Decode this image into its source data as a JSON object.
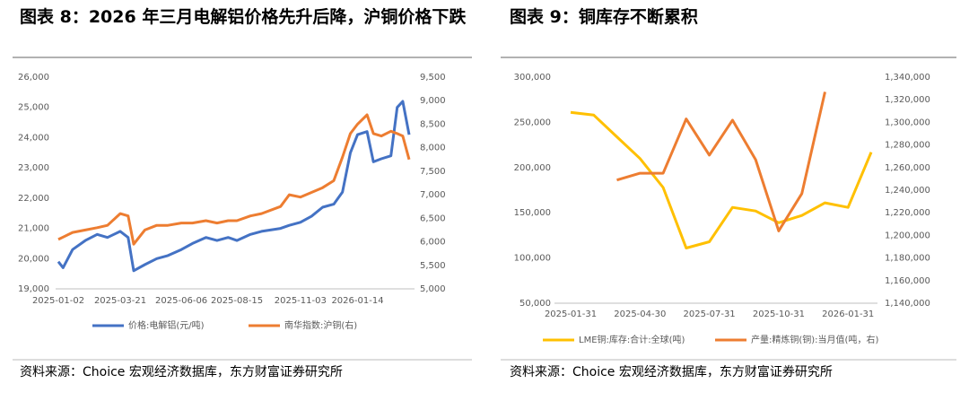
{
  "chart_data": [
    {
      "type": "line",
      "title": "图表 8：2026 年三月电解铝价格先升后降，沪铜价格下跌",
      "source": "资料来源：Choice 宏观经济数据库，东方财富证券研究所",
      "x": [
        "2025-01-02",
        "2025-01-08",
        "2025-01-20",
        "2025-02-05",
        "2025-02-20",
        "2025-03-05",
        "2025-03-21",
        "2025-03-31",
        "2025-04-07",
        "2025-04-21",
        "2025-05-06",
        "2025-05-20",
        "2025-06-06",
        "2025-06-20",
        "2025-07-07",
        "2025-07-21",
        "2025-08-04",
        "2025-08-15",
        "2025-09-01",
        "2025-09-15",
        "2025-10-09",
        "2025-10-20",
        "2025-11-03",
        "2025-11-17",
        "2025-12-01",
        "2025-12-15",
        "2025-12-26",
        "2026-01-05",
        "2026-01-14",
        "2026-01-26",
        "2026-02-03",
        "2026-02-13",
        "2026-02-25",
        "2026-03-05",
        "2026-03-12",
        "2026-03-20"
      ],
      "xticks": [
        "2025-01-02",
        "2025-03-21",
        "2025-06-06",
        "2025-08-15",
        "2025-11-03",
        "2026-01-14"
      ],
      "series": [
        {
          "name": "价格:电解铝(元/吨)",
          "color": "#4472c4",
          "axis": "y",
          "values": [
            19900,
            19700,
            20300,
            20600,
            20800,
            20700,
            20900,
            20700,
            19600,
            19800,
            20000,
            20100,
            20300,
            20500,
            20700,
            20600,
            20700,
            20600,
            20800,
            20900,
            21000,
            21100,
            21200,
            21400,
            21700,
            21800,
            22200,
            23500,
            24100,
            24200,
            23200,
            23300,
            23400,
            25000,
            25200,
            24100
          ]
        },
        {
          "name": "南华指数:沪铜(右)",
          "color": "#ed7d31",
          "axis": "y2",
          "values": [
            6050,
            6100,
            6200,
            6250,
            6300,
            6350,
            6600,
            6550,
            5950,
            6250,
            6350,
            6350,
            6400,
            6400,
            6450,
            6400,
            6450,
            6450,
            6550,
            6600,
            6750,
            7000,
            6950,
            7050,
            7150,
            7300,
            7800,
            8300,
            8500,
            8700,
            8300,
            8250,
            8350,
            8300,
            8250,
            7750
          ]
        }
      ],
      "ylim": [
        19000,
        26000
      ],
      "yticks": [
        {
          "value": 19000,
          "label": "19,000"
        },
        {
          "value": 20000,
          "label": "20,000"
        },
        {
          "value": 21000,
          "label": "21,000"
        },
        {
          "value": 22000,
          "label": "22,000"
        },
        {
          "value": 23000,
          "label": "23,000"
        },
        {
          "value": 24000,
          "label": "24,000"
        },
        {
          "value": 25000,
          "label": "25,000"
        },
        {
          "value": 26000,
          "label": "26,000"
        }
      ],
      "y2lim": [
        5000,
        9500
      ],
      "y2ticks": [
        {
          "value": 5000,
          "label": "5,000"
        },
        {
          "value": 5500,
          "label": "5,500"
        },
        {
          "value": 6000,
          "label": "6,000"
        },
        {
          "value": 6500,
          "label": "6,500"
        },
        {
          "value": 7000,
          "label": "7,000"
        },
        {
          "value": 7500,
          "label": "7,500"
        },
        {
          "value": 8000,
          "label": "8,000"
        },
        {
          "value": 8500,
          "label": "8,500"
        },
        {
          "value": 9000,
          "label": "9,000"
        },
        {
          "value": 9500,
          "label": "9,500"
        }
      ]
    },
    {
      "type": "line",
      "title": "图表 9：铜库存不断累积",
      "source": "资料来源：Choice 宏观经济数据库，东方财富证券研究所",
      "categories": [
        "2025-01-31",
        null,
        null,
        "2025-04-30",
        null,
        null,
        "2025-07-31",
        null,
        null,
        "2025-10-31",
        null,
        null,
        "2026-01-31",
        null
      ],
      "series": [
        {
          "name": "LME铜:库存:合计:全球(吨)",
          "color": "#ffc000",
          "axis": "y",
          "values": [
            261000,
            258000,
            234000,
            210000,
            178000,
            111000,
            118000,
            156000,
            152000,
            139000,
            147000,
            161000,
            156000,
            217000
          ]
        },
        {
          "name": "产量:精炼铜(铜):当月值(吨，右)",
          "color": "#ed7d31",
          "axis": "y2",
          "values": [
            null,
            null,
            1249000,
            1255000,
            1255000,
            1303000,
            1271000,
            1302000,
            1267000,
            1204000,
            1237000,
            1327000,
            null,
            null
          ]
        }
      ],
      "ylim": [
        50000,
        300000
      ],
      "yticks": [
        {
          "value": 50000,
          "label": "50,000"
        },
        {
          "value": 100000,
          "label": "100,000"
        },
        {
          "value": 150000,
          "label": "150,000"
        },
        {
          "value": 200000,
          "label": "200,000"
        },
        {
          "value": 250000,
          "label": "250,000"
        },
        {
          "value": 300000,
          "label": "300,000"
        }
      ],
      "y2lim": [
        1140000,
        1340000
      ],
      "y2ticks": [
        {
          "value": 1140000,
          "label": "1,140,000"
        },
        {
          "value": 1160000,
          "label": "1,160,000"
        },
        {
          "value": 1180000,
          "label": "1,180,000"
        },
        {
          "value": 1200000,
          "label": "1,200,000"
        },
        {
          "value": 1220000,
          "label": "1,220,000"
        },
        {
          "value": 1240000,
          "label": "1,240,000"
        },
        {
          "value": 1260000,
          "label": "1,260,000"
        },
        {
          "value": 1280000,
          "label": "1,280,000"
        },
        {
          "value": 1300000,
          "label": "1,300,000"
        },
        {
          "value": 1320000,
          "label": "1,320,000"
        },
        {
          "value": 1340000,
          "label": "1,340,000"
        }
      ]
    }
  ]
}
